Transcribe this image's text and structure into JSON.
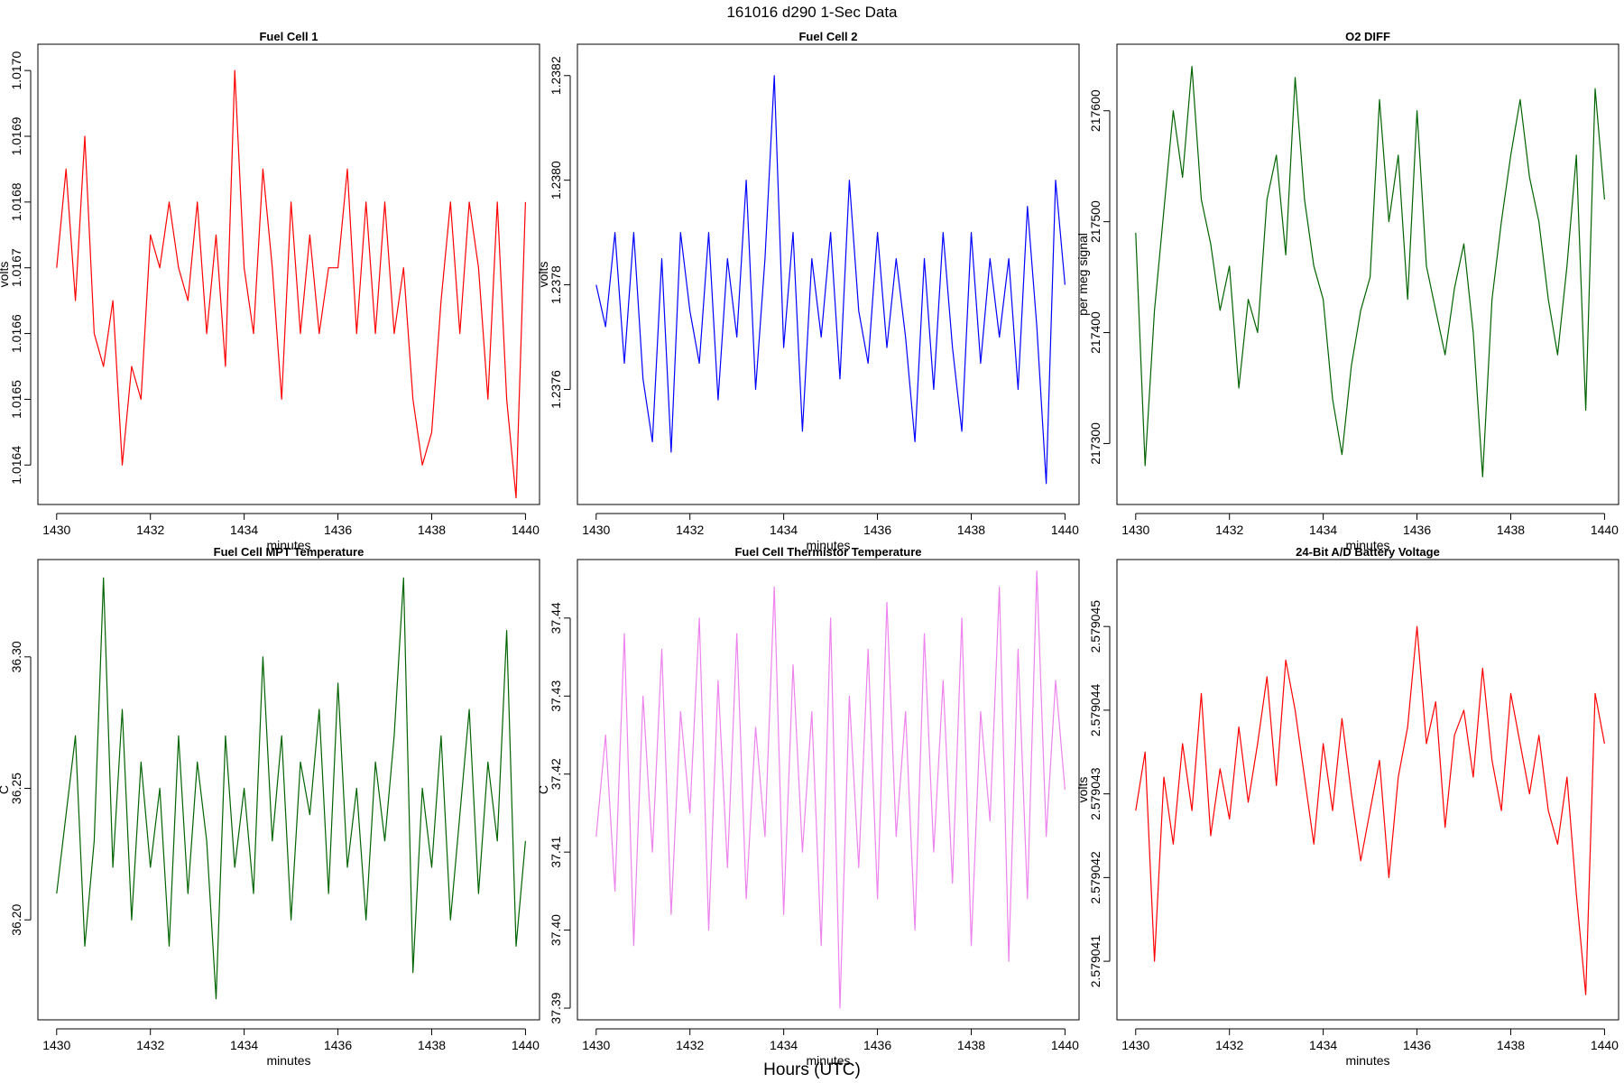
{
  "figure": {
    "title": "161016   d290   1-Sec Data",
    "xlabel": "Hours (UTC)"
  },
  "chart_data": [
    {
      "type": "line",
      "title": "Fuel Cell 1",
      "xlabel": "minutes",
      "ylabel": "volts",
      "color": "#ff0000",
      "xlim": [
        1429.6,
        1440.3
      ],
      "ylim": [
        1.01634,
        1.01704
      ],
      "xticks": [
        "1430",
        "1432",
        "1434",
        "1436",
        "1438",
        "1440"
      ],
      "yticks": [
        "1.0164",
        "1.0165",
        "1.0166",
        "1.0167",
        "1.0168",
        "1.0169",
        "1.0170"
      ],
      "x": [
        1430.0,
        1430.2,
        1430.4,
        1430.6,
        1430.8,
        1431.0,
        1431.2,
        1431.4,
        1431.6,
        1431.8,
        1432.0,
        1432.2,
        1432.4,
        1432.6,
        1432.8,
        1433.0,
        1433.2,
        1433.4,
        1433.6,
        1433.8,
        1434.0,
        1434.2,
        1434.4,
        1434.6,
        1434.8,
        1435.0,
        1435.2,
        1435.4,
        1435.6,
        1435.8,
        1436.0,
        1436.2,
        1436.4,
        1436.6,
        1436.8,
        1437.0,
        1437.2,
        1437.4,
        1437.6,
        1437.8,
        1438.0,
        1438.2,
        1438.4,
        1438.6,
        1438.8,
        1439.0,
        1439.2,
        1439.4,
        1439.6,
        1439.8,
        1440.0
      ],
      "values": [
        1.0167,
        1.01685,
        1.01665,
        1.0169,
        1.0166,
        1.01655,
        1.01665,
        1.0164,
        1.01655,
        1.0165,
        1.01675,
        1.0167,
        1.0168,
        1.0167,
        1.01665,
        1.0168,
        1.0166,
        1.01675,
        1.01655,
        1.017,
        1.0167,
        1.0166,
        1.01685,
        1.0167,
        1.0165,
        1.0168,
        1.0166,
        1.01675,
        1.0166,
        1.0167,
        1.0167,
        1.01685,
        1.0166,
        1.0168,
        1.0166,
        1.0168,
        1.0166,
        1.0167,
        1.0165,
        1.0164,
        1.01645,
        1.01665,
        1.0168,
        1.0166,
        1.0168,
        1.0167,
        1.0165,
        1.0168,
        1.0165,
        1.01635,
        1.0168
      ]
    },
    {
      "type": "line",
      "title": "Fuel Cell 2",
      "xlabel": "minutes",
      "ylabel": "volts",
      "color": "#0000ff",
      "xlim": [
        1429.6,
        1440.3
      ],
      "ylim": [
        1.23738,
        1.23826
      ],
      "xticks": [
        "1430",
        "1432",
        "1434",
        "1436",
        "1438",
        "1440"
      ],
      "yticks": [
        "1.2376",
        "1.2378",
        "1.2380",
        "1.2382"
      ],
      "x": [
        1430.0,
        1430.2,
        1430.4,
        1430.6,
        1430.8,
        1431.0,
        1431.2,
        1431.4,
        1431.6,
        1431.8,
        1432.0,
        1432.2,
        1432.4,
        1432.6,
        1432.8,
        1433.0,
        1433.2,
        1433.4,
        1433.6,
        1433.8,
        1434.0,
        1434.2,
        1434.4,
        1434.6,
        1434.8,
        1435.0,
        1435.2,
        1435.4,
        1435.6,
        1435.8,
        1436.0,
        1436.2,
        1436.4,
        1436.6,
        1436.8,
        1437.0,
        1437.2,
        1437.4,
        1437.6,
        1437.8,
        1438.0,
        1438.2,
        1438.4,
        1438.6,
        1438.8,
        1439.0,
        1439.2,
        1439.4,
        1439.6,
        1439.8,
        1440.0
      ],
      "values": [
        1.2378,
        1.23772,
        1.2379,
        1.23765,
        1.2379,
        1.23762,
        1.2375,
        1.23785,
        1.23748,
        1.2379,
        1.23775,
        1.23765,
        1.2379,
        1.23758,
        1.23785,
        1.2377,
        1.238,
        1.2376,
        1.23785,
        1.2382,
        1.23768,
        1.2379,
        1.23752,
        1.23785,
        1.2377,
        1.2379,
        1.23762,
        1.238,
        1.23775,
        1.23765,
        1.2379,
        1.23768,
        1.23785,
        1.2377,
        1.2375,
        1.23785,
        1.2376,
        1.2379,
        1.23768,
        1.23752,
        1.2379,
        1.23765,
        1.23785,
        1.2377,
        1.23785,
        1.2376,
        1.23795,
        1.23772,
        1.23742,
        1.238,
        1.2378
      ]
    },
    {
      "type": "line",
      "title": "O2 DIFF",
      "xlabel": "minutes",
      "ylabel": "per meg signal",
      "color": "#006400",
      "xlim": [
        1429.6,
        1440.3
      ],
      "ylim": [
        217245,
        217660
      ],
      "xticks": [
        "1430",
        "1432",
        "1434",
        "1436",
        "1438",
        "1440"
      ],
      "yticks": [
        "217300",
        "217400",
        "217500",
        "217600"
      ],
      "x": [
        1430.0,
        1430.2,
        1430.4,
        1430.6,
        1430.8,
        1431.0,
        1431.2,
        1431.4,
        1431.6,
        1431.8,
        1432.0,
        1432.2,
        1432.4,
        1432.6,
        1432.8,
        1433.0,
        1433.2,
        1433.4,
        1433.6,
        1433.8,
        1434.0,
        1434.2,
        1434.4,
        1434.6,
        1434.8,
        1435.0,
        1435.2,
        1435.4,
        1435.6,
        1435.8,
        1436.0,
        1436.2,
        1436.4,
        1436.6,
        1436.8,
        1437.0,
        1437.2,
        1437.4,
        1437.6,
        1437.8,
        1438.0,
        1438.2,
        1438.4,
        1438.6,
        1438.8,
        1439.0,
        1439.2,
        1439.4,
        1439.6,
        1439.8,
        1440.0
      ],
      "values": [
        217490,
        217280,
        217420,
        217510,
        217600,
        217540,
        217640,
        217520,
        217480,
        217420,
        217460,
        217350,
        217430,
        217400,
        217520,
        217560,
        217470,
        217630,
        217520,
        217460,
        217430,
        217340,
        217290,
        217370,
        217420,
        217450,
        217610,
        217500,
        217560,
        217430,
        217600,
        217460,
        217420,
        217380,
        217440,
        217480,
        217400,
        217270,
        217430,
        217500,
        217560,
        217610,
        217540,
        217500,
        217430,
        217380,
        217460,
        217560,
        217330,
        217620,
        217520
      ]
    },
    {
      "type": "line",
      "title": "Fuel Cell MPT Temperature",
      "xlabel": "minutes",
      "ylabel": "C",
      "color": "#006400",
      "xlim": [
        1429.6,
        1440.3
      ],
      "ylim": [
        36.162,
        36.337
      ],
      "xticks": [
        "1430",
        "1432",
        "1434",
        "1436",
        "1438",
        "1440"
      ],
      "yticks": [
        "36.20",
        "36.25",
        "36.30"
      ],
      "x": [
        1430.0,
        1430.2,
        1430.4,
        1430.6,
        1430.8,
        1431.0,
        1431.2,
        1431.4,
        1431.6,
        1431.8,
        1432.0,
        1432.2,
        1432.4,
        1432.6,
        1432.8,
        1433.0,
        1433.2,
        1433.4,
        1433.6,
        1433.8,
        1434.0,
        1434.2,
        1434.4,
        1434.6,
        1434.8,
        1435.0,
        1435.2,
        1435.4,
        1435.6,
        1435.8,
        1436.0,
        1436.2,
        1436.4,
        1436.6,
        1436.8,
        1437.0,
        1437.2,
        1437.4,
        1437.6,
        1437.8,
        1438.0,
        1438.2,
        1438.4,
        1438.6,
        1438.8,
        1439.0,
        1439.2,
        1439.4,
        1439.6,
        1439.8,
        1440.0
      ],
      "values": [
        36.21,
        36.24,
        36.27,
        36.19,
        36.23,
        36.33,
        36.22,
        36.28,
        36.2,
        36.26,
        36.22,
        36.25,
        36.19,
        36.27,
        36.21,
        36.26,
        36.23,
        36.17,
        36.27,
        36.22,
        36.25,
        36.21,
        36.3,
        36.23,
        36.27,
        36.2,
        36.26,
        36.24,
        36.28,
        36.21,
        36.29,
        36.22,
        36.25,
        36.2,
        36.26,
        36.23,
        36.27,
        36.33,
        36.18,
        36.25,
        36.22,
        36.27,
        36.2,
        36.24,
        36.28,
        36.21,
        36.26,
        36.23,
        36.31,
        36.19,
        36.23
      ]
    },
    {
      "type": "line",
      "title": "Fuel Cell Thermistor Temperature",
      "xlabel": "minutes",
      "ylabel": "C",
      "color": "#ee82ee",
      "xlim": [
        1429.6,
        1440.3
      ],
      "ylim": [
        37.3885,
        37.4475
      ],
      "xticks": [
        "1430",
        "1432",
        "1434",
        "1436",
        "1438",
        "1440"
      ],
      "yticks": [
        "37.39",
        "37.40",
        "37.41",
        "37.42",
        "37.43",
        "37.44"
      ],
      "x": [
        1430.0,
        1430.2,
        1430.4,
        1430.6,
        1430.8,
        1431.0,
        1431.2,
        1431.4,
        1431.6,
        1431.8,
        1432.0,
        1432.2,
        1432.4,
        1432.6,
        1432.8,
        1433.0,
        1433.2,
        1433.4,
        1433.6,
        1433.8,
        1434.0,
        1434.2,
        1434.4,
        1434.6,
        1434.8,
        1435.0,
        1435.2,
        1435.4,
        1435.6,
        1435.8,
        1436.0,
        1436.2,
        1436.4,
        1436.6,
        1436.8,
        1437.0,
        1437.2,
        1437.4,
        1437.6,
        1437.8,
        1438.0,
        1438.2,
        1438.4,
        1438.6,
        1438.8,
        1439.0,
        1439.2,
        1439.4,
        1439.6,
        1439.8,
        1440.0
      ],
      "values": [
        37.412,
        37.425,
        37.405,
        37.438,
        37.398,
        37.43,
        37.41,
        37.436,
        37.402,
        37.428,
        37.415,
        37.44,
        37.4,
        37.432,
        37.408,
        37.438,
        37.404,
        37.426,
        37.412,
        37.444,
        37.402,
        37.434,
        37.41,
        37.428,
        37.398,
        37.44,
        37.39,
        37.43,
        37.408,
        37.436,
        37.404,
        37.442,
        37.412,
        37.428,
        37.4,
        37.438,
        37.41,
        37.432,
        37.406,
        37.44,
        37.398,
        37.428,
        37.414,
        37.444,
        37.396,
        37.436,
        37.404,
        37.446,
        37.412,
        37.432,
        37.418
      ]
    },
    {
      "type": "line",
      "title": "24-Bit A/D Battery Voltage",
      "xlabel": "minutes",
      "ylabel": "volts",
      "color": "#ff0000",
      "xlim": [
        1429.6,
        1440.3
      ],
      "ylim": [
        2.5790403,
        2.5790458
      ],
      "xticks": [
        "1430",
        "1432",
        "1434",
        "1436",
        "1438",
        "1440"
      ],
      "yticks": [
        "2.579041",
        "2.579042",
        "2.579043",
        "2.579044",
        "2.579045"
      ],
      "x": [
        1430.0,
        1430.2,
        1430.4,
        1430.6,
        1430.8,
        1431.0,
        1431.2,
        1431.4,
        1431.6,
        1431.8,
        1432.0,
        1432.2,
        1432.4,
        1432.6,
        1432.8,
        1433.0,
        1433.2,
        1433.4,
        1433.6,
        1433.8,
        1434.0,
        1434.2,
        1434.4,
        1434.6,
        1434.8,
        1435.0,
        1435.2,
        1435.4,
        1435.6,
        1435.8,
        1436.0,
        1436.2,
        1436.4,
        1436.6,
        1436.8,
        1437.0,
        1437.2,
        1437.4,
        1437.6,
        1437.8,
        1438.0,
        1438.2,
        1438.4,
        1438.6,
        1438.8,
        1439.0,
        1439.2,
        1439.4,
        1439.6,
        1439.8,
        1440.0
      ],
      "values": [
        2.5790428,
        2.5790435,
        2.579041,
        2.5790432,
        2.5790424,
        2.5790436,
        2.5790428,
        2.5790442,
        2.5790425,
        2.5790433,
        2.5790427,
        2.5790438,
        2.5790429,
        2.5790436,
        2.5790444,
        2.5790431,
        2.5790446,
        2.579044,
        2.5790432,
        2.5790424,
        2.5790436,
        2.5790428,
        2.5790439,
        2.579043,
        2.5790422,
        2.5790428,
        2.5790434,
        2.579042,
        2.5790432,
        2.5790438,
        2.579045,
        2.5790436,
        2.5790441,
        2.5790426,
        2.5790437,
        2.579044,
        2.5790432,
        2.5790445,
        2.5790434,
        2.5790428,
        2.5790442,
        2.5790436,
        2.579043,
        2.5790437,
        2.5790428,
        2.5790424,
        2.5790432,
        2.5790418,
        2.5790406,
        2.5790442,
        2.5790436
      ]
    }
  ]
}
